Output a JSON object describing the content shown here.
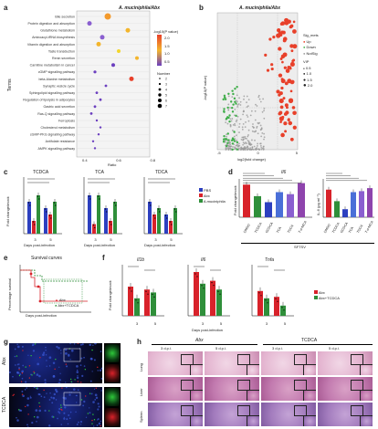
{
  "panels": {
    "a": "a",
    "b": "b",
    "c": "c",
    "d": "d",
    "e": "e",
    "f": "f",
    "g": "g",
    "h": "h"
  },
  "panel_a": {
    "title": "A. muciniphila/Abx",
    "ylabel": "Terms",
    "xlabel": "Ratio",
    "legend_title": "-log10(P value)",
    "legend_ticks": [
      "2.0",
      "1.5",
      "1.0",
      "0.5"
    ],
    "size_title": "Number",
    "size_values": [
      "2",
      "3",
      "4",
      "5",
      "6",
      "7"
    ],
    "terms": [
      "Bile secretion",
      "Protein digestion and absorption",
      "Glutathione metabolism",
      "Aminoacyl-tRNA biosynthesis",
      "Vitamin digestion and absorption",
      "Taste transduction",
      "Renin secretion",
      "Carnitine metabolism in cancer",
      "cGMP signalling pathway",
      "beta-Alanine metabolism",
      "Synaptic vesicle cycle",
      "Sphingolipid signalling pathway",
      "Regulation of lipolysis in adipocytes",
      "Gastric acid secretion",
      "Ras-Q signalling pathway",
      "Ferroptosis",
      "Cholesterol metabolism",
      "cGMP-PKG signalling pathway",
      "Antifolate resistance",
      "AMPK signalling pathway"
    ],
    "xticks": [
      "0.4",
      "0.6",
      "0.8"
    ],
    "colors": {
      "high": "#e8402a",
      "mid": "#f3b52c",
      "low": "#6b3fbf"
    }
  },
  "panel_b": {
    "title": "A. muciniphila/Abx",
    "xlabel": "log2(fold change)",
    "ylabel": "-log10(P value)",
    "legend_sig_title": "Sig_mets",
    "legend_sig": [
      "Up",
      "Down",
      "NotSig"
    ],
    "legend_vip_title": "VIP",
    "legend_vip": [
      "0.5",
      "1.0",
      "1.5",
      "2.0"
    ],
    "xticks": [
      "-5",
      "0",
      "5"
    ],
    "colors": {
      "up": "#e8402a",
      "down": "#3fae49",
      "notsig": "#9a9a9a"
    }
  },
  "panel_c": {
    "ylabel": "Fold change/mock",
    "xlabel": "Days post-infection",
    "titles": [
      "TCDCA",
      "TCA",
      "TDCA"
    ],
    "legend": [
      "PBS",
      "Abx",
      "A.muciniphila"
    ],
    "days": [
      "3",
      "5"
    ],
    "colors": {
      "pbs": "#2c3fbf",
      "abx": "#d8222a",
      "akk": "#2f8f3a"
    }
  },
  "panel_d": {
    "title_left": "Il6",
    "ylabel_left": "Fold change/mock",
    "ylabel_right": "IL-6 (pg ml⁻¹)",
    "xgroup": "SFTSV",
    "xcats": [
      "DMSO",
      "TCDCA",
      "GCDCA",
      "TCA",
      "TDCA",
      "T-α-MCA"
    ],
    "colors": [
      "#d8222a",
      "#2f8f3a",
      "#2c3fbf",
      "#4a6fd8",
      "#8a5fd0",
      "#8e44ad"
    ]
  },
  "panel_e": {
    "title": "Survival curves",
    "ylabel": "Percentage survival",
    "xlabel": "Days post-infection",
    "legend": [
      "Abx",
      "Abx+TCDCA"
    ],
    "colors": {
      "abx": "#d8222a",
      "tcdca": "#2f8f3a"
    }
  },
  "panel_f": {
    "ylabel": "Fold change/mock",
    "xlabel": "Days post-infection",
    "titles": [
      "Il1b",
      "Il6",
      "Tnfa"
    ],
    "legend": [
      "Abx",
      "Abx+TCDCA"
    ],
    "days": [
      "3",
      "5"
    ],
    "colors": {
      "abx": "#d8222a",
      "tcdca": "#2f8f3a"
    }
  },
  "panel_g": {
    "row_labels": [
      "Abx",
      "TCDCA"
    ]
  },
  "panel_h": {
    "group_labels": [
      "Abx",
      "TCDCA"
    ],
    "time_labels": [
      "3 d.p.i.",
      "5 d.p.i.",
      "3 d.p.i.",
      "5 d.p.i."
    ],
    "row_labels": [
      "Lung",
      "Liver",
      "Spleen"
    ]
  }
}
